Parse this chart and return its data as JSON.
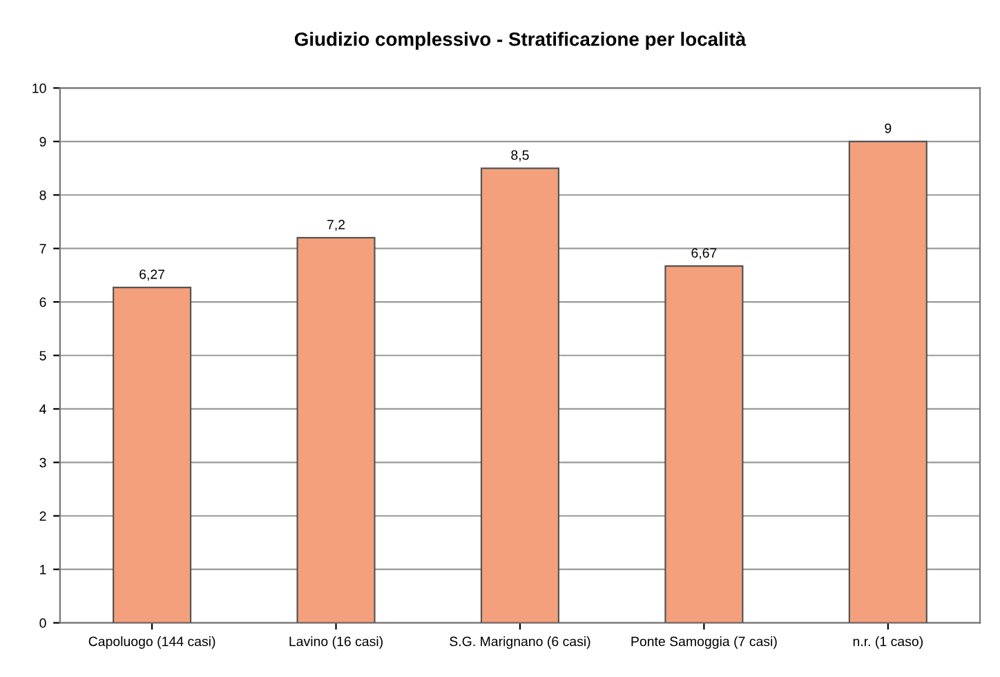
{
  "chart_data": {
    "type": "bar",
    "title": "Giudizio complessivo - Stratificazione per località",
    "categories": [
      "Capoluogo (144 casi)",
      "Lavino (16 casi)",
      "S.G. Marignano (6 casi)",
      "Ponte Samoggia (7 casi)",
      "n.r. (1 caso)"
    ],
    "values": [
      6.27,
      7.2,
      8.5,
      6.67,
      9
    ],
    "color": "#f4a07c",
    "ylim": [
      0,
      10
    ],
    "yticks": [
      0,
      1,
      2,
      3,
      4,
      5,
      6,
      7,
      8,
      9,
      10
    ],
    "grid": "y",
    "value_labels": [
      "6,27",
      "7,2",
      "8,5",
      "6,67",
      "9"
    ]
  }
}
